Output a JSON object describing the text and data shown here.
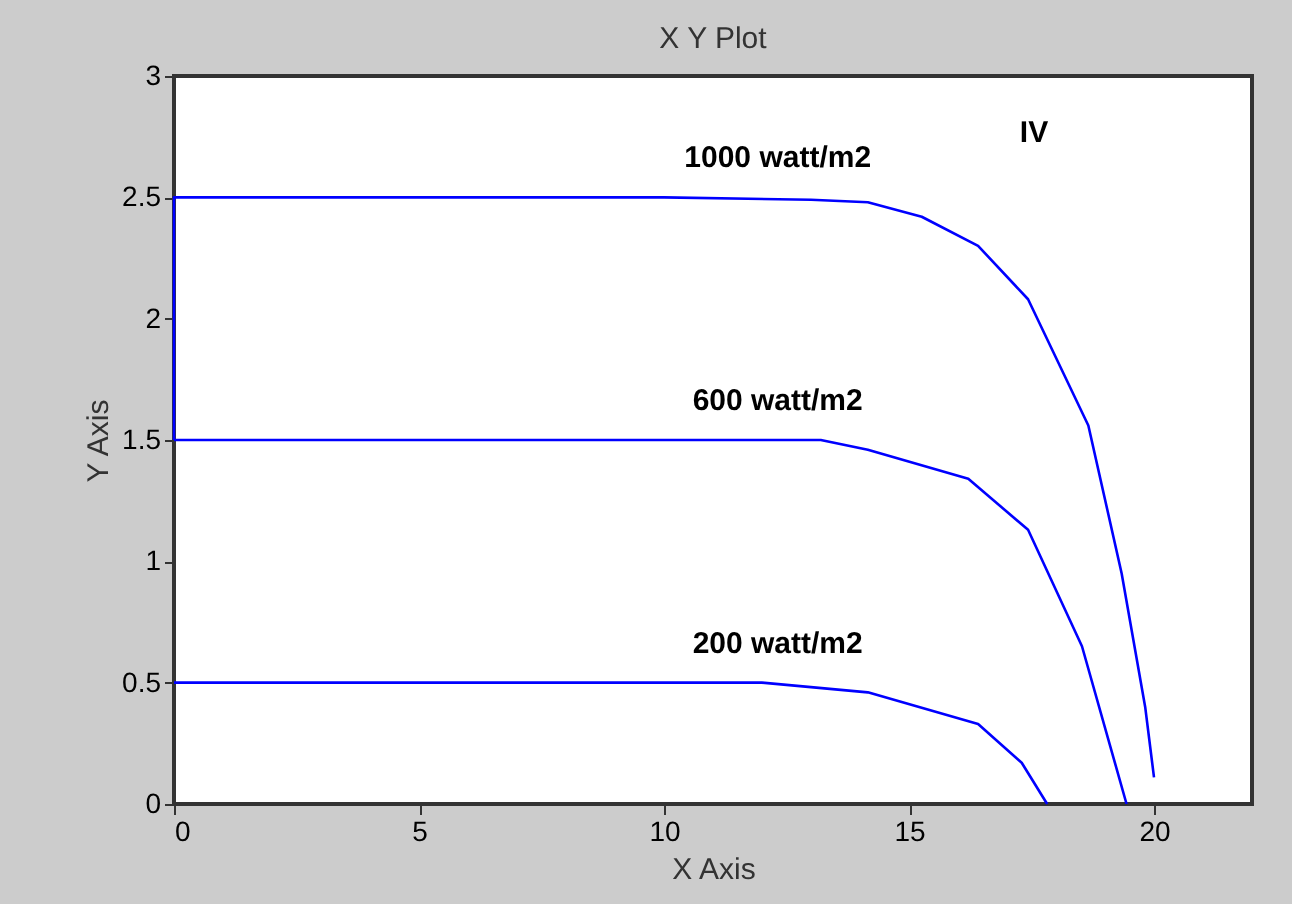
{
  "chart_data": {
    "type": "line",
    "title": "X Y Plot",
    "xlabel": "X Axis",
    "ylabel": "Y Axis",
    "xlim": [
      0,
      22
    ],
    "xticks": [
      0,
      5,
      10,
      15,
      20
    ],
    "ylim": [
      0,
      3
    ],
    "yticks": [
      0,
      0.5,
      1,
      1.5,
      2,
      2.5,
      3
    ],
    "grid": false,
    "legend": false,
    "marker": "none",
    "line_style": "solid",
    "series": [
      {
        "name": "1000 watt/m2",
        "color": "#0000ff",
        "x": [
          0,
          0,
          10,
          13,
          14.16,
          15.26,
          16.41,
          17.43,
          18.66,
          19.34,
          19.82,
          20.0
        ],
        "values": [
          1.5,
          2.5,
          2.5,
          2.49,
          2.48,
          2.42,
          2.3,
          2.08,
          1.56,
          0.95,
          0.4,
          0.11
        ]
      },
      {
        "name": "600 watt/m2",
        "color": "#0000ff",
        "x": [
          0,
          10,
          13.2,
          14.16,
          16.21,
          17.43,
          18.53,
          19.44
        ],
        "values": [
          1.5,
          1.5,
          1.5,
          1.46,
          1.34,
          1.13,
          0.65,
          0
        ]
      },
      {
        "name": "200 watt/m2",
        "color": "#0000ff",
        "x": [
          0,
          12,
          14.16,
          16.41,
          17.3,
          17.82
        ],
        "values": [
          0.5,
          0.5,
          0.46,
          0.33,
          0.17,
          0
        ]
      }
    ],
    "annotations": [
      "IV"
    ]
  }
}
